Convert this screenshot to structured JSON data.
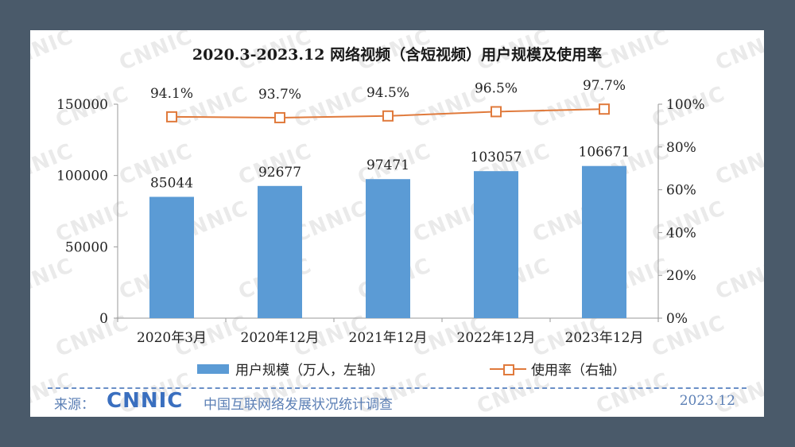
{
  "chart_data": {
    "type": "bar",
    "title": "2020.3-2023.12 网络视频（含短视频）用户规模及使用率",
    "categories": [
      "2020年3月",
      "2020年12月",
      "2021年12月",
      "2022年12月",
      "2023年12月"
    ],
    "series": [
      {
        "name": "用户规模（万人，左轴）",
        "kind": "bar",
        "axis": "left",
        "color": "#5b9bd5",
        "values": [
          85044,
          92677,
          97471,
          103057,
          106671
        ],
        "labels": [
          "85044",
          "92677",
          "97471",
          "103057",
          "106671"
        ]
      },
      {
        "name": "使用率（右轴）",
        "kind": "line",
        "axis": "right",
        "color": "#e07a3c",
        "values": [
          94.1,
          93.7,
          94.5,
          96.5,
          97.7
        ],
        "labels": [
          "94.1%",
          "93.7%",
          "94.5%",
          "96.5%",
          "97.7%"
        ]
      }
    ],
    "y_left": {
      "ylim": [
        0,
        150000
      ],
      "ticks": [
        "0",
        "50000",
        "100000",
        "150000"
      ],
      "tick_values": [
        0,
        50000,
        100000,
        150000
      ]
    },
    "y_right": {
      "ylim": [
        0,
        100
      ],
      "ticks": [
        "0%",
        "20%",
        "40%",
        "60%",
        "80%",
        "100%"
      ],
      "tick_values": [
        0,
        20,
        40,
        60,
        80,
        100
      ]
    },
    "legend_position": "bottom",
    "grid": false
  },
  "footer": {
    "source_label": "来源：",
    "logo_text": "CNNIC",
    "source_text": "中国互联网络发展状况统计调查",
    "date": "2023.12"
  },
  "watermark": {
    "text": "CNNIC"
  }
}
